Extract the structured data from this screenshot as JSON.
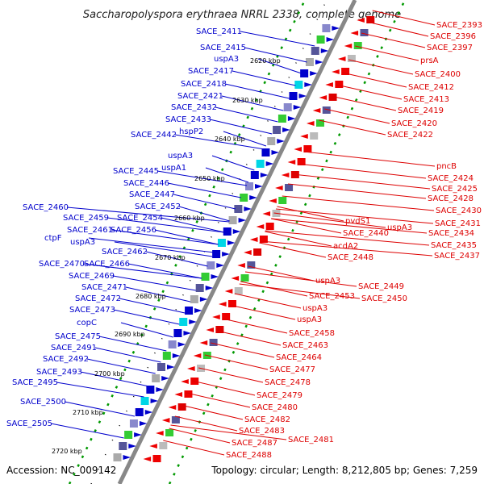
{
  "title": "Saccharopolyspora erythraea NRRL 2338, complete genome",
  "accession": "Accession: NC_009142",
  "topology": "Topology: circular; Length: 8,212,805 bp; Genes: 7,259",
  "colors": {
    "forward": "#0000cc",
    "reverse": "#ee0000",
    "backbone": "#888888",
    "dots": "#009900"
  },
  "kbp_ticks": [
    "2620 kbp",
    "2630 kbp",
    "2640 kbp",
    "2650 kbp",
    "2660 kbp",
    "2670 kbp",
    "2680 kbp",
    "2690 kbp",
    "2700 kbp",
    "2710 kbp",
    "2720 kbp"
  ],
  "left_labels": [
    "SACE_2411",
    "SACE_2415",
    "uspA3",
    "SACE_2417",
    "SACE_2418",
    "SACE_2421",
    "SACE_2432",
    "SACE_2433",
    "hspP2",
    "SACE_2442",
    "uspA3",
    "uspA1",
    "SACE_2445",
    "SACE_2446",
    "SACE_2447",
    "SACE_2452",
    "SACE_2454",
    "SACE_2460",
    "SACE_2459",
    "SACE_2461",
    "SACE_2456",
    "ctpF",
    "uspA3",
    "SACE_2462",
    "SACE_2470",
    "SACE_2466",
    "SACE_2469",
    "SACE_2471",
    "SACE_2472",
    "SACE_2473",
    "copC",
    "SACE_2475",
    "SACE_2491",
    "SACE_2492",
    "SACE_2493",
    "SACE_2495",
    "SACE_2500",
    "SACE_2505"
  ],
  "right_labels": [
    "SACE_2393",
    "SACE_2396",
    "SACE_2397",
    "prsA",
    "SACE_2400",
    "SACE_2412",
    "SACE_2413",
    "SACE_2419",
    "SACE_2420",
    "SACE_2422",
    "pncB",
    "SACE_2424",
    "SACE_2425",
    "SACE_2428",
    "SACE_2430",
    "pvdS1",
    "SACE_2431",
    "uspA3",
    "SACE_2434",
    "SACE_2440",
    "SACE_2435",
    "acdA2",
    "SACE_2437",
    "SACE_2448",
    "uspA3",
    "SACE_2449",
    "SACE_2453",
    "SACE_2450",
    "uspA3",
    "uspA3",
    "SACE_2458",
    "SACE_2463",
    "SACE_2464",
    "SACE_2477",
    "SACE_2478",
    "SACE_2479",
    "SACE_2480",
    "SACE_2482",
    "SACE_2483",
    "SACE_2481",
    "SACE_2487",
    "SACE_2488"
  ]
}
